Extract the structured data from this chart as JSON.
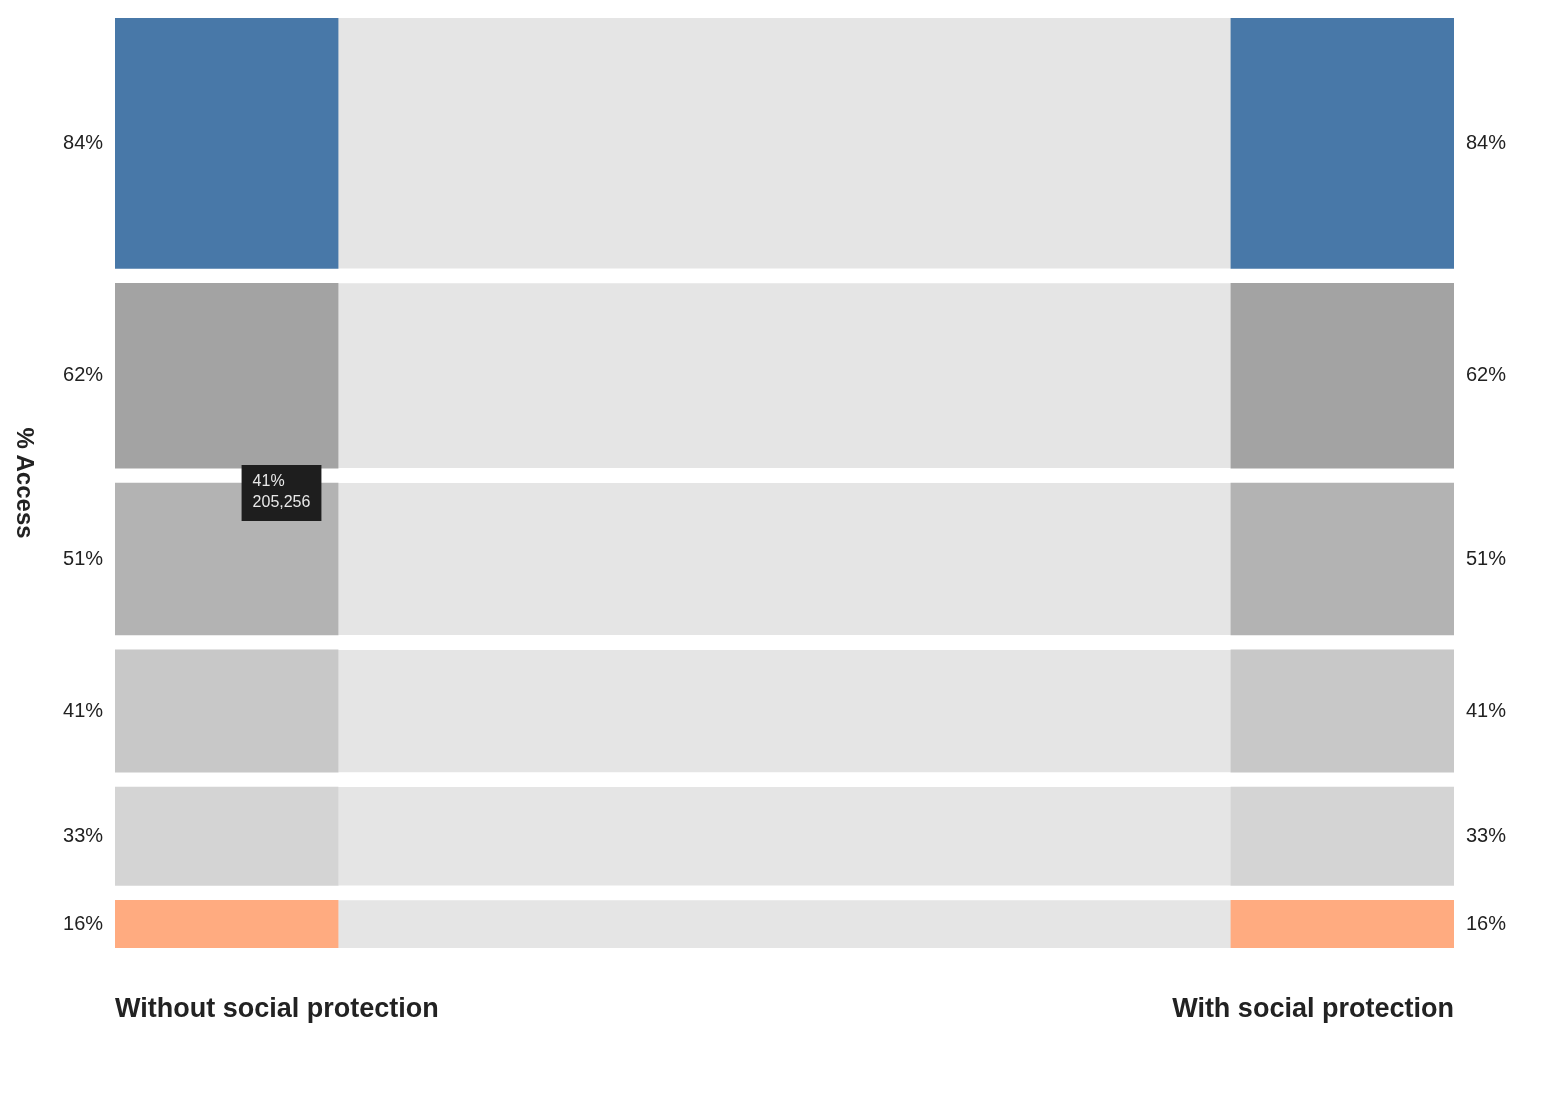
{
  "chart_data": {
    "type": "other",
    "ylabel": "% Access",
    "categories": [
      "Without social protection",
      "With social protection"
    ],
    "series": [
      {
        "color": "#4878a8",
        "values": [
          84,
          84
        ],
        "value_labels": [
          "84%",
          "84%"
        ]
      },
      {
        "color": "#a3a3a3",
        "values": [
          62,
          62
        ],
        "value_labels": [
          "62%",
          "62%"
        ]
      },
      {
        "color": "#b3b3b3",
        "values": [
          51,
          51
        ],
        "value_labels": [
          "51%",
          "51%"
        ]
      },
      {
        "color": "#c8c8c8",
        "values": [
          41,
          41
        ],
        "value_labels": [
          "41%",
          "41%"
        ]
      },
      {
        "color": "#d4d4d4",
        "values": [
          33,
          33
        ],
        "value_labels": [
          "33%",
          "33%"
        ]
      },
      {
        "color": "#ffab80",
        "values": [
          16,
          16
        ],
        "value_labels": [
          "16%",
          "16%"
        ]
      }
    ],
    "annotations": [
      "41%\n205,256"
    ]
  }
}
